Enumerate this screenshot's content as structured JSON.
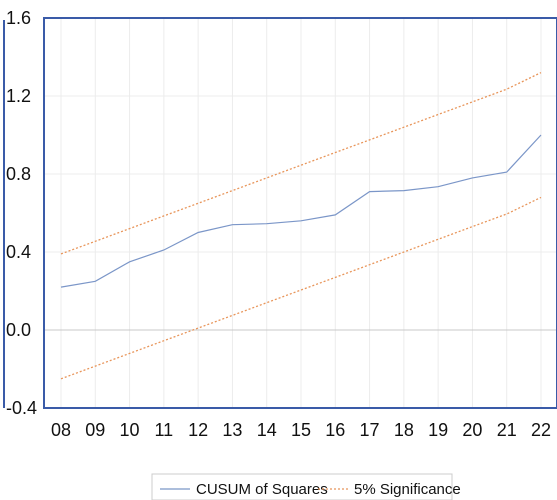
{
  "chart_data": {
    "type": "line",
    "title": "",
    "xlabel": "",
    "ylabel": "",
    "categories": [
      "08",
      "09",
      "10",
      "11",
      "12",
      "13",
      "14",
      "15",
      "16",
      "17",
      "18",
      "19",
      "20",
      "21",
      "22"
    ],
    "ylim": [
      -0.4,
      1.6
    ],
    "yticks": [
      "1.6",
      "1.2",
      "0.8",
      "0.4",
      "0.0",
      "-0.4"
    ],
    "grid": true,
    "zero_line": true,
    "legend_position": "bottom",
    "series": [
      {
        "name": "CUSUM of Squares",
        "color": "#7b96c8",
        "style": "solid",
        "values": [
          0.22,
          0.25,
          0.35,
          0.41,
          0.5,
          0.54,
          0.545,
          0.56,
          0.59,
          0.71,
          0.715,
          0.735,
          0.78,
          0.81,
          1.0
        ]
      },
      {
        "name": "5% Significance",
        "color": "#e8955a",
        "style": "dotted",
        "values": [
          0.39,
          0.455,
          0.52,
          0.585,
          0.65,
          0.715,
          0.78,
          0.845,
          0.91,
          0.975,
          1.04,
          1.105,
          1.17,
          1.235,
          1.32
        ]
      },
      {
        "name": "",
        "color": "#e8955a",
        "style": "dotted",
        "values": [
          -0.25,
          -0.185,
          -0.12,
          -0.055,
          0.01,
          0.075,
          0.14,
          0.205,
          0.27,
          0.335,
          0.4,
          0.465,
          0.53,
          0.595,
          0.68
        ]
      }
    ]
  }
}
